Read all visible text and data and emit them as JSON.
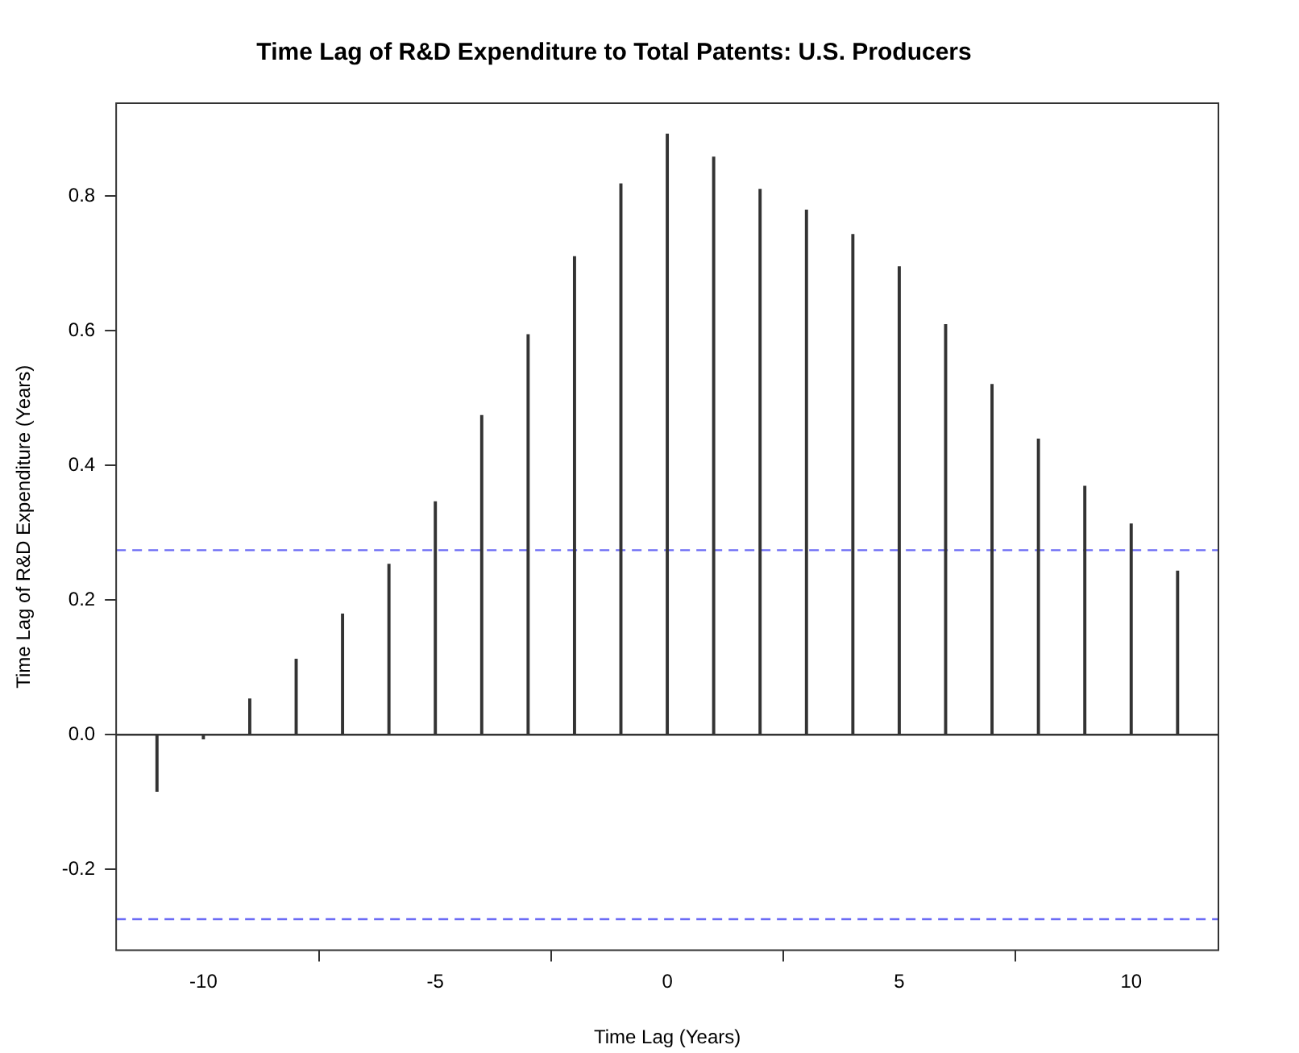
{
  "chart_data": {
    "type": "bar",
    "title": "Time Lag of R&D Expenditure to Total Patents: U.S. Producers",
    "xlabel": "Time Lag (Years)",
    "ylabel": "Time Lag of R&D Expenditure (Years)",
    "x": [
      -11,
      -10,
      -9,
      -8,
      -7,
      -6,
      -5,
      -4,
      -3,
      -2,
      -1,
      0,
      1,
      2,
      3,
      4,
      5,
      6,
      7,
      8,
      9,
      10,
      11
    ],
    "values": [
      -0.084,
      -0.006,
      0.053,
      0.112,
      0.179,
      0.253,
      0.346,
      0.474,
      0.594,
      0.71,
      0.818,
      0.892,
      0.858,
      0.81,
      0.779,
      0.743,
      0.695,
      0.609,
      0.52,
      0.439,
      0.369,
      0.313,
      0.243
    ],
    "color": "#333333",
    "xlim": [
      -11.88,
      11.88
    ],
    "xticks": [
      -10,
      -5,
      0,
      5,
      10
    ],
    "ylim": [
      -0.32,
      0.938
    ],
    "yticks": [
      {
        "value": -0.2,
        "label": "-0.2"
      },
      {
        "value": 0,
        "label": "0.0"
      },
      0.2,
      0.4,
      0.6,
      0.8
    ],
    "ref_lines": [
      {
        "axis": "y",
        "value": 0,
        "color": "#333333",
        "line_style": "solid"
      },
      {
        "axis": "y",
        "value": 0.274,
        "color": "#6b6bf5",
        "line_style": "dashed"
      },
      {
        "axis": "y",
        "value": -0.274,
        "color": "#6b6bf5",
        "line_style": "dashed"
      }
    ],
    "grid": false,
    "legend": false
  }
}
